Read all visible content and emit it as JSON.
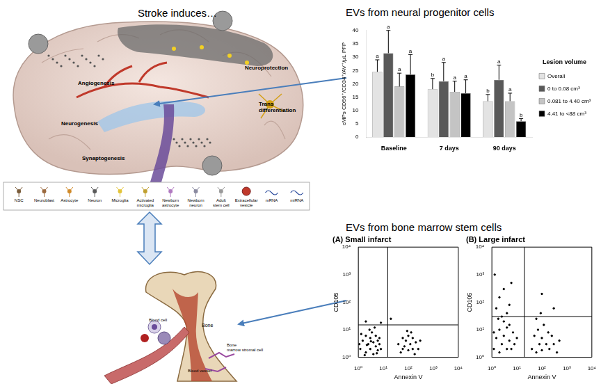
{
  "diagram": {
    "title": "Stroke induces…",
    "processes": [
      "Angiogenesis",
      "Neuroprotection",
      "Neurogenesis",
      "Trans differentiation",
      "Synaptogenesis"
    ],
    "cell_legend": [
      "NSC",
      "Neuroblast",
      "Astrocyte",
      "Neuron",
      "Microglia",
      "Activated microglia",
      "Newborn astrocyte",
      "Newborn neuron",
      "Adult stem cell",
      "Extracellular vesicle",
      "mRNA",
      "miRNA"
    ],
    "bone_labels": [
      "Bone",
      "Blood cell",
      "Blood vessel",
      "Bone marrow stromal cell"
    ]
  },
  "panels": [
    {
      "title": "EVs from neural progenitor cells"
    },
    {
      "title": "EVs from bone marrow stem cells"
    }
  ],
  "chart_data": [
    {
      "type": "bar",
      "y_label": "cMPs CD56⁺/CD34⁺/AV⁺/μL PFP",
      "legend_title": "Lesion volume",
      "legend": "right",
      "categories": [
        "Baseline",
        "7 days",
        "90 days"
      ],
      "series": [
        {
          "name": "Overall",
          "color": "#e3e3e3",
          "values": [
            24.5,
            18,
            13.5
          ],
          "error": [
            4.5,
            4,
            2.5
          ],
          "letters": [
            "a",
            "b",
            "b"
          ]
        },
        {
          "name": "0 to 0.08 cm³",
          "color": "#595959",
          "values": [
            31.5,
            21,
            21.5
          ],
          "error": [
            8.5,
            7,
            5.5
          ],
          "letters": [
            "a",
            "a",
            "a"
          ]
        },
        {
          "name": "0.081 to 4.40 cm³",
          "color": "#c4c4c4",
          "values": [
            19,
            17,
            13.5
          ],
          "error": [
            5,
            4,
            3
          ],
          "letters": [
            "a",
            "a",
            "a"
          ]
        },
        {
          "name": "4.41 to <88 cm³",
          "color": "#000000",
          "values": [
            23.5,
            16.5,
            6
          ],
          "error": [
            7.5,
            5,
            1
          ],
          "letters": [
            "a",
            "a",
            "b"
          ]
        }
      ],
      "ylim": [
        0,
        40
      ],
      "yticks": [
        0,
        5,
        10,
        15,
        20,
        25,
        30,
        35,
        40
      ],
      "grid": false
    },
    {
      "type": "scatter",
      "title": "(A) Small infarct",
      "x_label": "Annexin V",
      "y_label": "CD105",
      "log": true,
      "grid": false,
      "color": "#000000",
      "gate": {
        "x": 15,
        "y": 15
      },
      "x": [
        1.2,
        1.5,
        2,
        2,
        2.5,
        3,
        3,
        3.5,
        4,
        4,
        5,
        5,
        6,
        6,
        7,
        8,
        1.3,
        2.8,
        4.5,
        1.8,
        2.2,
        3.2,
        5.5,
        7,
        1.1,
        40,
        50,
        60,
        70,
        80,
        100,
        100,
        120,
        150,
        150,
        200,
        250,
        300,
        90,
        180,
        60,
        130,
        2,
        20,
        8
      ],
      "values": [
        2,
        4,
        1.5,
        6,
        3,
        2,
        5,
        8,
        1.3,
        3.5,
        2.5,
        6,
        1.8,
        4,
        3,
        2,
        7,
        10,
        12,
        1.2,
        2.8,
        3.8,
        1.4,
        5,
        3,
        3,
        1.5,
        5,
        2.5,
        4,
        1.8,
        6,
        3,
        2,
        5,
        3.5,
        2,
        4,
        9,
        1.3,
        2,
        8,
        20,
        25,
        18
      ],
      "xlim": [
        1,
        10000
      ],
      "ylim": [
        1,
        10000
      ],
      "xticks": [
        {
          "value": 1,
          "label": "10⁰"
        },
        {
          "value": 10,
          "label": "10¹"
        },
        {
          "value": 100,
          "label": "10²"
        },
        {
          "value": 1000,
          "label": "10³"
        },
        {
          "value": 10000,
          "label": "10⁴"
        }
      ],
      "yticks": [
        {
          "value": 1,
          "label": "10⁰"
        },
        {
          "value": 10,
          "label": "10¹"
        },
        {
          "value": 100,
          "label": "10²"
        },
        {
          "value": 1000,
          "label": "10³"
        },
        {
          "value": 10000,
          "label": "10⁴"
        }
      ]
    },
    {
      "type": "scatter",
      "title": "(B) Large infarct",
      "x_label": "Annexin V",
      "y_label": "CD105",
      "log": true,
      "grid": false,
      "color": "#000000",
      "gate": {
        "x": 20,
        "y": 30
      },
      "x": [
        1.2,
        1.5,
        2,
        2,
        2.5,
        3,
        3,
        4,
        4,
        5,
        5,
        6,
        7,
        8,
        1.5,
        2,
        3,
        5,
        1.3,
        6,
        2.5,
        4,
        10,
        1.8,
        1.2,
        40,
        50,
        60,
        70,
        80,
        100,
        100,
        120,
        150,
        200,
        250,
        300,
        400,
        60,
        500,
        180,
        90,
        300,
        100
      ],
      "values": [
        2,
        5,
        1.5,
        10,
        3,
        20,
        6,
        2,
        40,
        4,
        15,
        2,
        8,
        3,
        60,
        150,
        300,
        80,
        1000,
        500,
        30,
        12,
        5,
        25,
        8,
        2,
        6,
        1.5,
        10,
        3,
        5,
        1.8,
        15,
        3,
        2,
        6,
        3,
        1.5,
        25,
        4,
        8,
        40,
        60,
        200
      ],
      "xlim": [
        1,
        10000
      ],
      "ylim": [
        1,
        10000
      ],
      "xticks": [
        {
          "value": 1,
          "label": "10⁰"
        },
        {
          "value": 10,
          "label": "10¹"
        },
        {
          "value": 100,
          "label": "10²"
        },
        {
          "value": 1000,
          "label": "10³"
        },
        {
          "value": 10000,
          "label": "10⁴"
        }
      ],
      "yticks": [
        {
          "value": 1,
          "label": "10⁰"
        },
        {
          "value": 10,
          "label": "10¹"
        },
        {
          "value": 100,
          "label": "10²"
        },
        {
          "value": 1000,
          "label": "10³"
        },
        {
          "value": 10000,
          "label": "10⁴"
        }
      ]
    }
  ]
}
